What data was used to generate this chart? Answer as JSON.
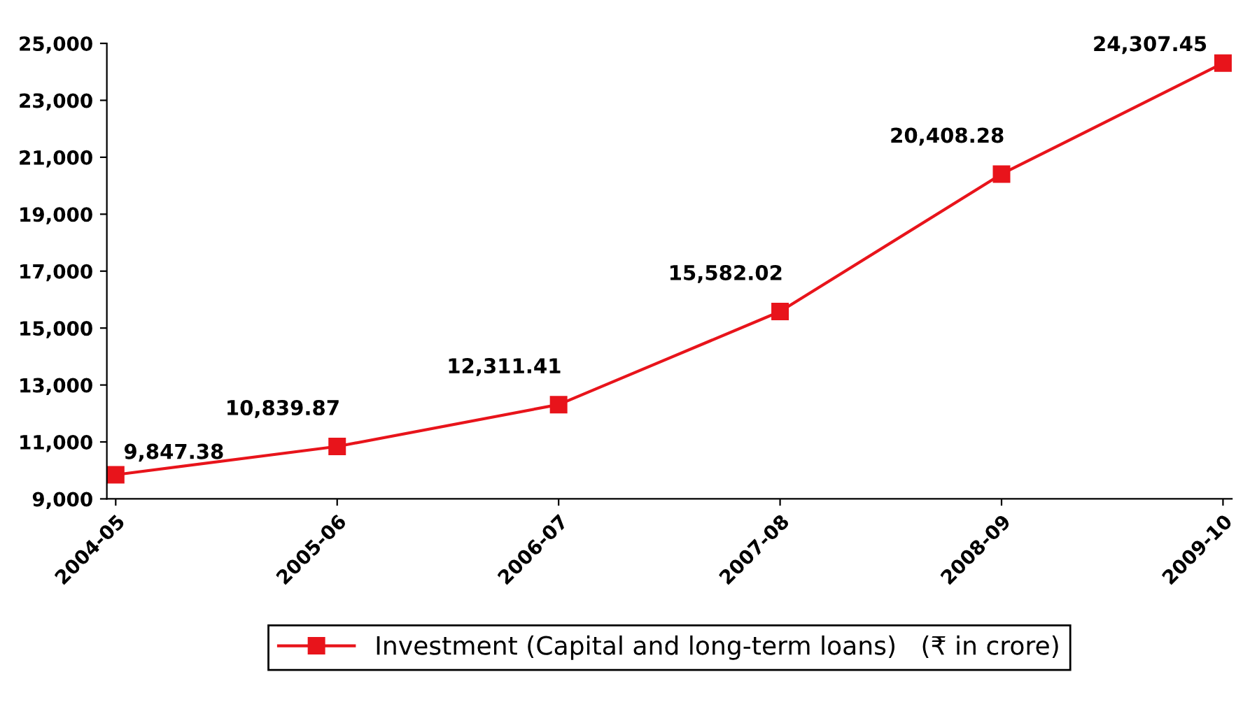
{
  "chart_data": {
    "type": "line",
    "categories": [
      "2004-05",
      "2005-06",
      "2006-07",
      "2007-08",
      "2008-09",
      "2009-10"
    ],
    "series": [
      {
        "name": "Investment (Capital and long-term loans)   (₹ in crore)",
        "color": "#e8141b",
        "values": [
          9847.38,
          10839.87,
          12311.41,
          15582.02,
          20408.28,
          24307.45
        ],
        "value_labels": [
          "9,847.38",
          "10,839.87",
          "12,311.41",
          "15,582.02",
          "20,408.28",
          "24,307.45"
        ]
      }
    ],
    "ylim": [
      9000,
      25000
    ],
    "yticks": [
      {
        "value": 9000,
        "label": "9,000"
      },
      {
        "value": 11000,
        "label": "11,000"
      },
      {
        "value": 13000,
        "label": "13,000"
      },
      {
        "value": 15000,
        "label": "15,000"
      },
      {
        "value": 17000,
        "label": "17,000"
      },
      {
        "value": 19000,
        "label": "19,000"
      },
      {
        "value": 21000,
        "label": "21,000"
      },
      {
        "value": 23000,
        "label": "23,000"
      },
      {
        "value": 25000,
        "label": "25,000"
      }
    ],
    "marker": "square",
    "line_style": "solid",
    "grid": false,
    "legend": "bottom"
  }
}
